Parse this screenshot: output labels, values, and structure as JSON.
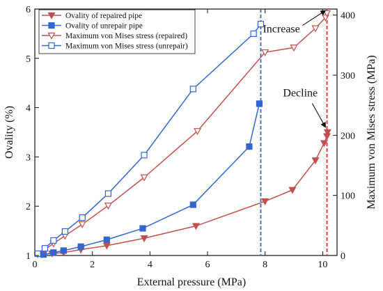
{
  "chart_data": {
    "type": "line",
    "xlabel": "External pressure (MPa)",
    "ylabel_left": "Ovality (%)",
    "ylabel_right": "Maximum von Mises stress (MPa)",
    "xlim": [
      0,
      10.5
    ],
    "ylim_left": [
      1,
      6
    ],
    "ylim_right": [
      0,
      410
    ],
    "x_ticks": [
      0,
      2,
      4,
      6,
      8,
      10
    ],
    "y_left_ticks": [
      1,
      2,
      3,
      4,
      5,
      6
    ],
    "y_right_ticks": [
      0,
      100,
      200,
      300,
      400
    ],
    "grid": false,
    "legend_position": "top-left",
    "series": [
      {
        "name": "Ovality of repaired pipe",
        "axis": "left",
        "marker": "triangle-down-filled",
        "color": "#c0504d",
        "x": [
          0.25,
          0.6,
          1.0,
          1.6,
          2.5,
          3.8,
          5.6,
          8.0,
          8.95,
          9.75,
          10.05,
          10.15,
          10.17
        ],
        "y": [
          1.02,
          1.04,
          1.06,
          1.12,
          1.2,
          1.35,
          1.6,
          2.1,
          2.33,
          2.93,
          3.28,
          3.42,
          3.5
        ]
      },
      {
        "name": "Ovality of unrepair pipe",
        "axis": "left",
        "marker": "square-filled",
        "color": "#3366cc",
        "x": [
          0.3,
          0.65,
          1.0,
          1.6,
          2.5,
          3.75,
          5.5,
          7.45,
          7.8
        ],
        "y": [
          1.02,
          1.06,
          1.1,
          1.18,
          1.32,
          1.55,
          2.03,
          3.21,
          4.08
        ]
      },
      {
        "name": "Maximum von Mises stress (repaired)",
        "axis": "right",
        "marker": "triangle-down-open",
        "color": "#c0504d",
        "x": [
          0.1,
          0.35,
          0.65,
          1.05,
          1.65,
          2.55,
          3.8,
          5.65,
          8.0,
          9.0,
          9.75,
          10.1,
          10.15
        ],
        "y": [
          2,
          10,
          20,
          33,
          52,
          83,
          130,
          207,
          338,
          346,
          378,
          396,
          403
        ]
      },
      {
        "name": "Maximum von Mises stress (unrepair)",
        "axis": "right",
        "marker": "square-open",
        "color": "#3366cc",
        "x": [
          0.1,
          0.35,
          0.65,
          1.05,
          1.65,
          2.55,
          3.8,
          5.5,
          7.6,
          7.85
        ],
        "y": [
          3,
          12,
          25,
          40,
          63,
          103,
          167,
          277,
          369,
          385
        ]
      }
    ],
    "reference_lines": [
      {
        "x": 7.85,
        "color": "#3366cc",
        "style": "dashed"
      },
      {
        "x": 10.15,
        "color": "#e03030",
        "style": "dashed"
      }
    ],
    "annotations": [
      {
        "text": "Increase",
        "x": 7.85,
        "y_left": 5.5,
        "arrow_to_x": 10.1,
        "arrow_to_y_left": 5.97
      },
      {
        "text": "Decline",
        "x": 8.55,
        "y_left": 4.2,
        "arrow_to_x": 10.1,
        "arrow_to_y_left": 3.6
      }
    ]
  }
}
